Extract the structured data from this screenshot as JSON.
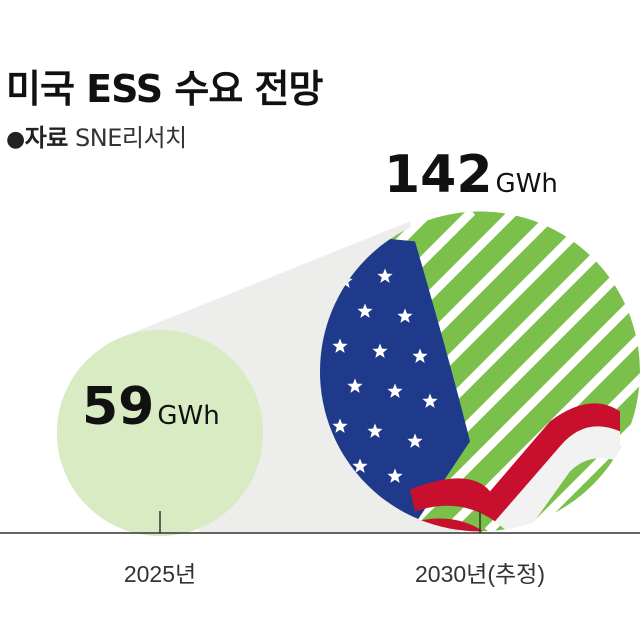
{
  "title": "미국 ESS 수요 전망",
  "source": {
    "bullet": "●",
    "label": "자료",
    "value": "SNE리서치"
  },
  "colors": {
    "small_bubble": "#d9ebc3",
    "large_bubble": "#7cc04c",
    "cone": "#ededeb",
    "axis": "#333333",
    "text": "#111111",
    "flag_blue": "#1f3a8a",
    "flag_red": "#c8102e"
  },
  "chart_data": {
    "type": "bubble",
    "categories": [
      "2025년",
      "2030년(추정)"
    ],
    "values": [
      59,
      142
    ],
    "unit": "GWh",
    "value_labels": [
      "59",
      "142"
    ]
  }
}
